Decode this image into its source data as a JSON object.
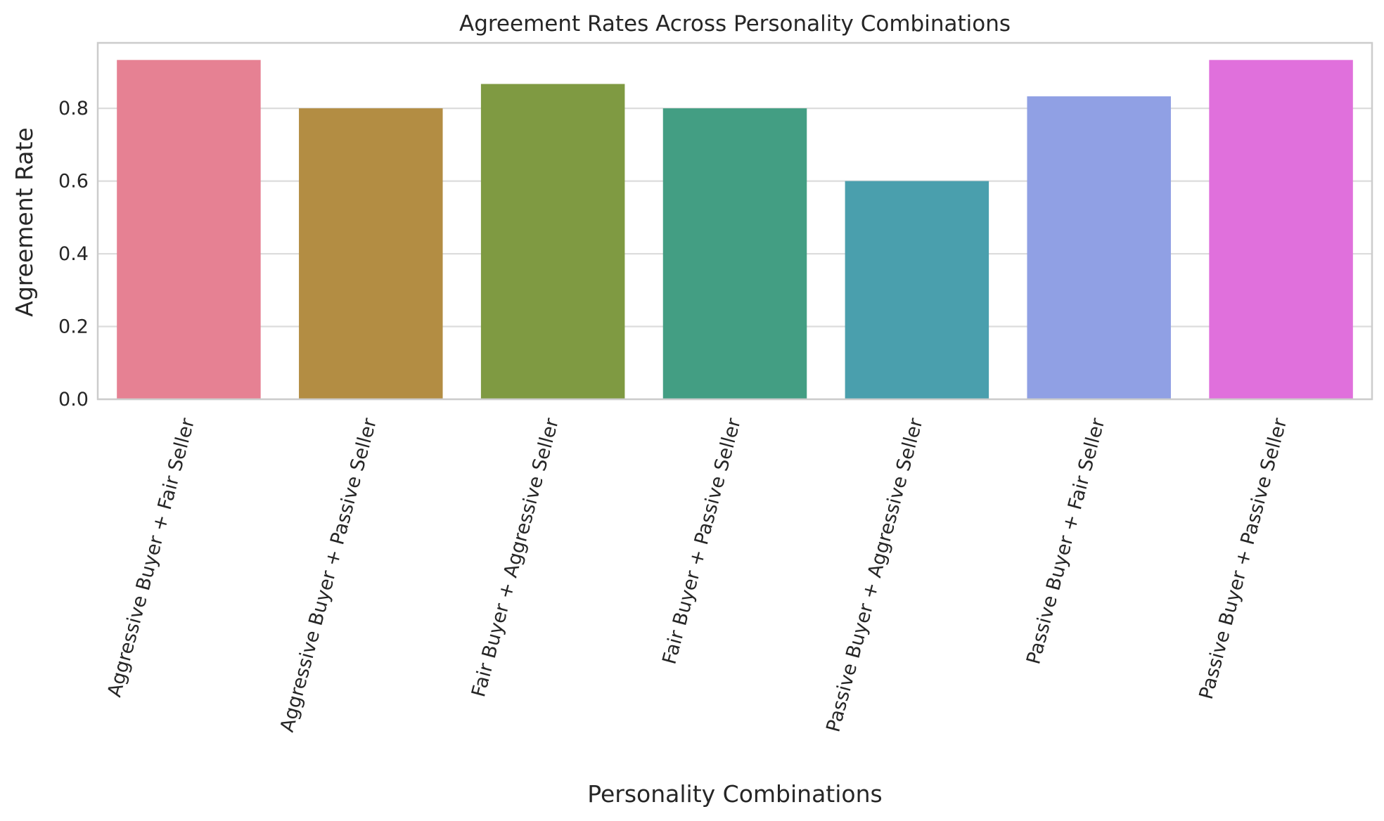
{
  "chart_data": {
    "type": "bar",
    "title": "Agreement Rates Across Personality Combinations",
    "xlabel": "Personality Combinations",
    "ylabel": "Agreement Rate",
    "categories": [
      "Aggressive Buyer + Fair Seller",
      "Aggressive Buyer + Passive Seller",
      "Fair Buyer + Aggressive Seller",
      "Fair Buyer + Passive Seller",
      "Passive Buyer + Aggressive Seller",
      "Passive Buyer + Fair Seller",
      "Passive Buyer + Passive Seller"
    ],
    "values": [
      0.933,
      0.8,
      0.867,
      0.8,
      0.6,
      0.833,
      0.933
    ],
    "colors": [
      "#e68193",
      "#b38d43",
      "#7f9a42",
      "#439e83",
      "#4a9fad",
      "#90a0e4",
      "#e070dc"
    ],
    "ylim": [
      0,
      0.98
    ],
    "yticks": [
      0.0,
      0.2,
      0.4,
      0.6,
      0.8
    ],
    "ytick_labels": [
      "0.0",
      "0.2",
      "0.4",
      "0.6",
      "0.8"
    ],
    "grid": true,
    "legend": "none"
  }
}
